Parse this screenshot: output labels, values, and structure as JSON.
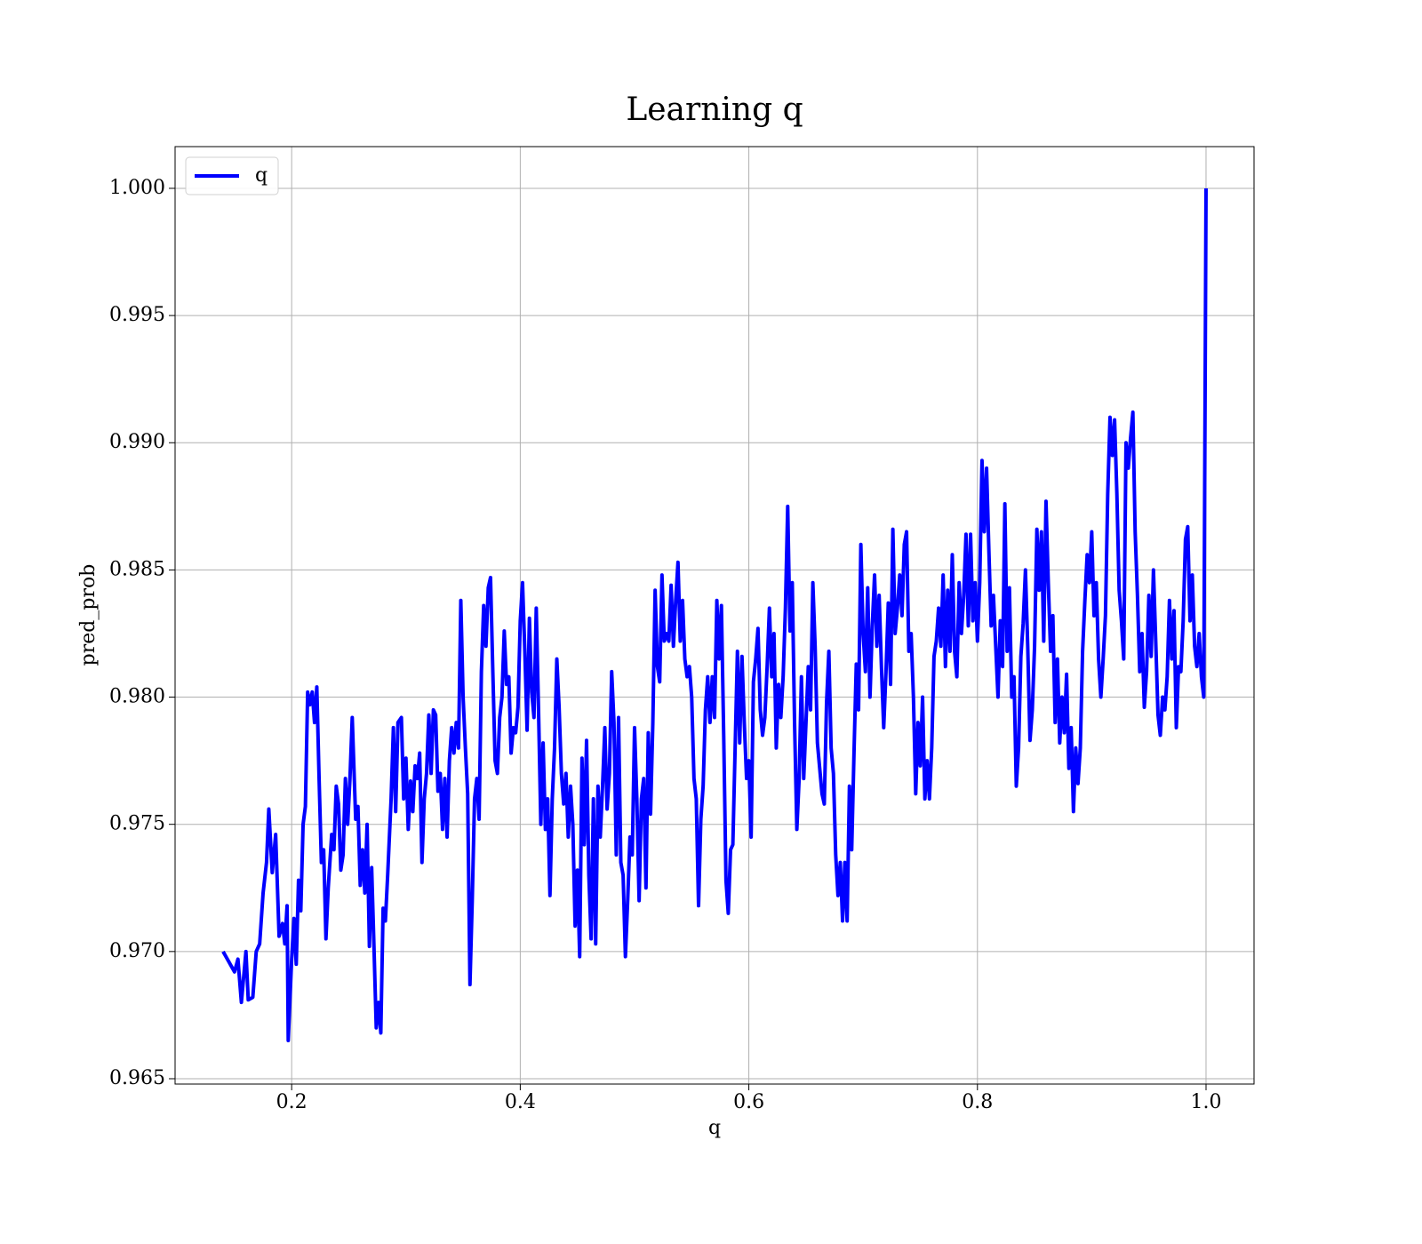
{
  "chart_data": {
    "type": "line",
    "title": "Learning q",
    "x_label": "q",
    "y_label": "pred_prob",
    "xlim": [
      0.098,
      1.042
    ],
    "ylim": [
      0.96479,
      1.00164
    ],
    "xticks": [
      0.2,
      0.4,
      0.6,
      0.8,
      {
        "value": 1,
        "label": "1.0"
      }
    ],
    "yticks": [
      0.965,
      {
        "value": 0.97,
        "label": "0.970"
      },
      0.975,
      {
        "value": 0.98,
        "label": "0.980"
      },
      0.985,
      {
        "value": 0.99,
        "label": "0.990"
      },
      0.995,
      {
        "value": 1,
        "label": "1.000"
      }
    ],
    "grid": true,
    "legend": "upper left",
    "x": [
      0.14,
      0.15,
      0.153,
      0.156,
      0.16,
      0.162,
      0.166,
      0.169,
      0.172,
      0.175,
      0.178,
      0.18,
      0.183,
      0.186,
      0.189,
      0.192,
      0.194,
      0.196,
      0.197,
      0.2,
      0.202,
      0.204,
      0.206,
      0.208,
      0.21,
      0.212,
      0.214,
      0.216,
      0.218,
      0.22,
      0.222,
      0.224,
      0.226,
      0.228,
      0.23,
      0.232,
      0.235,
      0.237,
      0.239,
      0.241,
      0.243,
      0.245,
      0.247,
      0.249,
      0.251,
      0.253,
      0.256,
      0.258,
      0.26,
      0.262,
      0.264,
      0.266,
      0.268,
      0.27,
      0.272,
      0.274,
      0.276,
      0.278,
      0.28,
      0.282,
      0.284,
      0.287,
      0.289,
      0.291,
      0.293,
      0.296,
      0.298,
      0.3,
      0.302,
      0.304,
      0.306,
      0.308,
      0.31,
      0.312,
      0.314,
      0.316,
      0.318,
      0.32,
      0.322,
      0.324,
      0.326,
      0.328,
      0.33,
      0.332,
      0.334,
      0.336,
      0.338,
      0.34,
      0.342,
      0.344,
      0.346,
      0.348,
      0.35,
      0.352,
      0.354,
      0.356,
      0.358,
      0.36,
      0.362,
      0.364,
      0.366,
      0.368,
      0.37,
      0.372,
      0.374,
      0.376,
      0.378,
      0.38,
      0.382,
      0.384,
      0.386,
      0.388,
      0.39,
      0.392,
      0.394,
      0.396,
      0.398,
      0.4,
      0.402,
      0.404,
      0.406,
      0.408,
      0.41,
      0.412,
      0.414,
      0.416,
      0.418,
      0.42,
      0.422,
      0.424,
      0.426,
      0.428,
      0.43,
      0.432,
      0.434,
      0.436,
      0.438,
      0.44,
      0.442,
      0.444,
      0.446,
      0.448,
      0.45,
      0.452,
      0.454,
      0.456,
      0.458,
      0.46,
      0.462,
      0.464,
      0.466,
      0.468,
      0.47,
      0.472,
      0.474,
      0.476,
      0.478,
      0.48,
      0.482,
      0.484,
      0.486,
      0.488,
      0.49,
      0.492,
      0.494,
      0.496,
      0.498,
      0.5,
      0.502,
      0.504,
      0.506,
      0.508,
      0.51,
      0.512,
      0.514,
      0.516,
      0.518,
      0.52,
      0.522,
      0.524,
      0.526,
      0.528,
      0.53,
      0.532,
      0.534,
      0.536,
      0.538,
      0.54,
      0.542,
      0.544,
      0.546,
      0.548,
      0.55,
      0.552,
      0.554,
      0.556,
      0.558,
      0.56,
      0.562,
      0.564,
      0.566,
      0.568,
      0.57,
      0.572,
      0.574,
      0.576,
      0.578,
      0.58,
      0.582,
      0.584,
      0.586,
      0.588,
      0.59,
      0.592,
      0.594,
      0.596,
      0.598,
      0.6,
      0.602,
      0.604,
      0.606,
      0.608,
      0.61,
      0.612,
      0.614,
      0.616,
      0.618,
      0.62,
      0.622,
      0.624,
      0.626,
      0.628,
      0.63,
      0.632,
      0.634,
      0.636,
      0.638,
      0.64,
      0.642,
      0.644,
      0.646,
      0.648,
      0.65,
      0.652,
      0.654,
      0.656,
      0.658,
      0.66,
      0.662,
      0.664,
      0.666,
      0.668,
      0.67,
      0.672,
      0.674,
      0.676,
      0.678,
      0.68,
      0.682,
      0.684,
      0.686,
      0.688,
      0.69,
      0.692,
      0.694,
      0.696,
      0.698,
      0.7,
      0.702,
      0.704,
      0.706,
      0.708,
      0.71,
      0.712,
      0.714,
      0.716,
      0.718,
      0.72,
      0.722,
      0.724,
      0.726,
      0.728,
      0.73,
      0.732,
      0.734,
      0.736,
      0.738,
      0.74,
      0.742,
      0.744,
      0.746,
      0.748,
      0.75,
      0.752,
      0.754,
      0.756,
      0.758,
      0.76,
      0.762,
      0.764,
      0.766,
      0.768,
      0.77,
      0.772,
      0.774,
      0.776,
      0.778,
      0.78,
      0.782,
      0.784,
      0.786,
      0.788,
      0.79,
      0.792,
      0.794,
      0.796,
      0.798,
      0.8,
      0.802,
      0.804,
      0.806,
      0.808,
      0.81,
      0.812,
      0.814,
      0.816,
      0.818,
      0.82,
      0.822,
      0.824,
      0.826,
      0.828,
      0.83,
      0.832,
      0.834,
      0.836,
      0.838,
      0.84,
      0.842,
      0.844,
      0.846,
      0.848,
      0.85,
      0.852,
      0.854,
      0.856,
      0.858,
      0.86,
      0.862,
      0.864,
      0.866,
      0.868,
      0.87,
      0.872,
      0.874,
      0.876,
      0.878,
      0.88,
      0.882,
      0.884,
      0.886,
      0.888,
      0.89,
      0.892,
      0.894,
      0.896,
      0.898,
      0.9,
      0.902,
      0.904,
      0.906,
      0.908,
      0.91,
      0.912,
      0.914,
      0.916,
      0.918,
      0.92,
      0.922,
      0.924,
      0.926,
      0.928,
      0.93,
      0.932,
      0.934,
      0.936,
      0.938,
      0.94,
      0.942,
      0.944,
      0.946,
      0.948,
      0.95,
      0.952,
      0.954,
      0.956,
      0.958,
      0.96,
      0.962,
      0.964,
      0.966,
      0.968,
      0.97,
      0.972,
      0.974,
      0.976,
      0.978,
      0.98,
      0.982,
      0.984,
      0.986,
      0.988,
      0.99,
      0.992,
      0.994,
      0.996,
      0.998,
      1.0
    ],
    "series": [
      {
        "name": "q",
        "color": "#0000ff",
        "values": [
          0.97,
          0.9692,
          0.9697,
          0.968,
          0.97,
          0.9681,
          0.9682,
          0.97,
          0.9703,
          0.9723,
          0.9735,
          0.9756,
          0.9731,
          0.9746,
          0.9706,
          0.9711,
          0.9703,
          0.9718,
          0.9665,
          0.9697,
          0.9713,
          0.9695,
          0.9728,
          0.9716,
          0.975,
          0.9757,
          0.9802,
          0.9797,
          0.9802,
          0.979,
          0.9804,
          0.9768,
          0.9735,
          0.974,
          0.9705,
          0.9725,
          0.9746,
          0.974,
          0.9765,
          0.9758,
          0.9732,
          0.9738,
          0.9768,
          0.975,
          0.9768,
          0.9792,
          0.9752,
          0.9757,
          0.9726,
          0.974,
          0.9723,
          0.975,
          0.9702,
          0.9733,
          0.9702,
          0.967,
          0.968,
          0.9668,
          0.9717,
          0.9712,
          0.973,
          0.976,
          0.9788,
          0.9755,
          0.979,
          0.9792,
          0.976,
          0.9776,
          0.9748,
          0.9767,
          0.9755,
          0.9773,
          0.9768,
          0.9778,
          0.9735,
          0.976,
          0.977,
          0.9793,
          0.977,
          0.9795,
          0.9793,
          0.9763,
          0.977,
          0.9748,
          0.9768,
          0.9745,
          0.9775,
          0.9788,
          0.9778,
          0.979,
          0.978,
          0.9838,
          0.98,
          0.978,
          0.9762,
          0.9687,
          0.972,
          0.976,
          0.9768,
          0.9752,
          0.981,
          0.9836,
          0.982,
          0.9843,
          0.9847,
          0.981,
          0.9775,
          0.977,
          0.9792,
          0.98,
          0.9826,
          0.9805,
          0.9808,
          0.9778,
          0.9788,
          0.9786,
          0.9796,
          0.983,
          0.9845,
          0.9818,
          0.9787,
          0.9831,
          0.9802,
          0.9792,
          0.9835,
          0.9795,
          0.975,
          0.9782,
          0.9748,
          0.976,
          0.9722,
          0.976,
          0.978,
          0.9815,
          0.9796,
          0.977,
          0.9758,
          0.977,
          0.9745,
          0.9765,
          0.975,
          0.971,
          0.9732,
          0.9698,
          0.9776,
          0.9742,
          0.9783,
          0.973,
          0.9705,
          0.976,
          0.9703,
          0.9765,
          0.9745,
          0.9765,
          0.9788,
          0.9756,
          0.977,
          0.981,
          0.979,
          0.9738,
          0.9792,
          0.9735,
          0.973,
          0.9698,
          0.972,
          0.9745,
          0.9738,
          0.9788,
          0.976,
          0.972,
          0.976,
          0.9768,
          0.9725,
          0.9786,
          0.9754,
          0.979,
          0.9842,
          0.9812,
          0.9806,
          0.9848,
          0.9822,
          0.9825,
          0.9822,
          0.9844,
          0.982,
          0.9838,
          0.9853,
          0.9822,
          0.9838,
          0.9815,
          0.9808,
          0.9812,
          0.98,
          0.9768,
          0.976,
          0.9718,
          0.9752,
          0.9765,
          0.9795,
          0.9808,
          0.979,
          0.9808,
          0.9792,
          0.9838,
          0.9815,
          0.9836,
          0.9785,
          0.9728,
          0.9715,
          0.974,
          0.9742,
          0.978,
          0.9818,
          0.9782,
          0.9816,
          0.979,
          0.9768,
          0.9775,
          0.9745,
          0.9806,
          0.9815,
          0.9827,
          0.9795,
          0.9785,
          0.9792,
          0.9812,
          0.9835,
          0.9808,
          0.9825,
          0.978,
          0.9805,
          0.9792,
          0.9808,
          0.9835,
          0.9875,
          0.9826,
          0.9845,
          0.979,
          0.9748,
          0.9768,
          0.9808,
          0.9768,
          0.979,
          0.9812,
          0.9795,
          0.9845,
          0.982,
          0.9782,
          0.9772,
          0.9762,
          0.9758,
          0.9798,
          0.9818,
          0.978,
          0.977,
          0.9738,
          0.9722,
          0.9735,
          0.9712,
          0.9735,
          0.9712,
          0.9765,
          0.974,
          0.9778,
          0.9813,
          0.9795,
          0.986,
          0.9825,
          0.981,
          0.9843,
          0.98,
          0.9828,
          0.9848,
          0.982,
          0.984,
          0.9812,
          0.9788,
          0.981,
          0.9837,
          0.9805,
          0.9866,
          0.9825,
          0.9835,
          0.9848,
          0.9832,
          0.986,
          0.9865,
          0.9818,
          0.9825,
          0.98,
          0.9762,
          0.979,
          0.9773,
          0.98,
          0.976,
          0.9775,
          0.976,
          0.978,
          0.9816,
          0.9822,
          0.9835,
          0.982,
          0.9848,
          0.9812,
          0.9842,
          0.9818,
          0.9856,
          0.9818,
          0.9808,
          0.9845,
          0.9825,
          0.984,
          0.9864,
          0.9828,
          0.9864,
          0.983,
          0.9845,
          0.9822,
          0.9845,
          0.9893,
          0.9865,
          0.989,
          0.9858,
          0.9828,
          0.984,
          0.982,
          0.98,
          0.983,
          0.9812,
          0.9876,
          0.9818,
          0.9843,
          0.98,
          0.9808,
          0.9765,
          0.978,
          0.9816,
          0.9829,
          0.985,
          0.982,
          0.9783,
          0.9795,
          0.982,
          0.9866,
          0.9842,
          0.9865,
          0.9822,
          0.9877,
          0.9845,
          0.9818,
          0.9832,
          0.979,
          0.9815,
          0.9782,
          0.98,
          0.9786,
          0.9809,
          0.9772,
          0.9788,
          0.9755,
          0.978,
          0.9766,
          0.978,
          0.9818,
          0.9838,
          0.9856,
          0.9845,
          0.9865,
          0.9832,
          0.9845,
          0.9815,
          0.98,
          0.9815,
          0.9832,
          0.988,
          0.991,
          0.9895,
          0.9909,
          0.988,
          0.9842,
          0.983,
          0.9815,
          0.99,
          0.989,
          0.9902,
          0.9912,
          0.9865,
          0.984,
          0.981,
          0.9825,
          0.9796,
          0.981,
          0.984,
          0.9816,
          0.985,
          0.9822,
          0.9793,
          0.9785,
          0.98,
          0.9795,
          0.9808,
          0.9838,
          0.9815,
          0.9834,
          0.9788,
          0.9812,
          0.981,
          0.983,
          0.9862,
          0.9867,
          0.983,
          0.9848,
          0.982,
          0.9812,
          0.9825,
          0.9808,
          0.98,
          1.0
        ]
      }
    ]
  }
}
